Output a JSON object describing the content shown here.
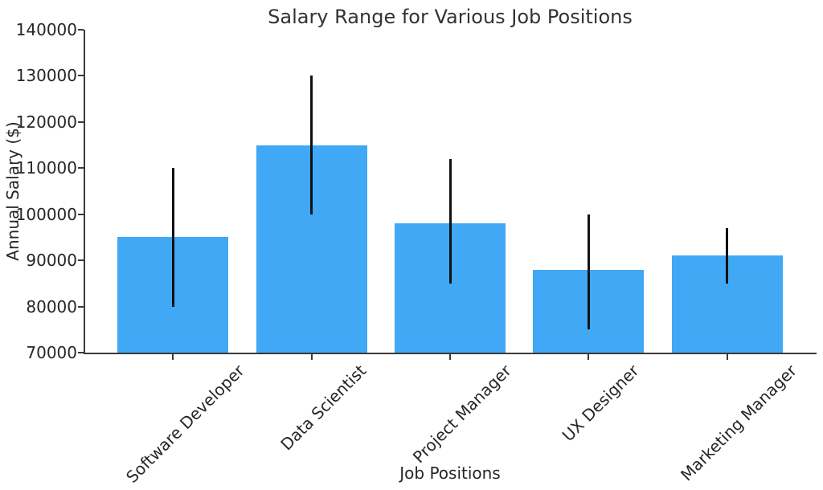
{
  "chart_data": {
    "type": "bar",
    "title": "Salary Range for Various Job Positions",
    "xlabel": "Job Positions",
    "ylabel": "Annual Salary ($)",
    "categories": [
      "Software Developer",
      "Data Scientist",
      "Project Manager",
      "UX Designer",
      "Marketing Manager"
    ],
    "values": [
      95000,
      115000,
      98000,
      88000,
      91000
    ],
    "error_low": [
      80000,
      100000,
      85000,
      75000,
      85000
    ],
    "error_high": [
      110000,
      130000,
      112000,
      100000,
      97000
    ],
    "ylim": [
      70000,
      140000
    ],
    "ytick_step": 10000,
    "ytick_labels": [
      "70000",
      "80000",
      "90000",
      "100000",
      "110000",
      "120000",
      "130000",
      "140000"
    ],
    "bar_color": "#40a8f5",
    "error_bar_color": "#111111",
    "grid": false,
    "legend": false,
    "x_tick_rotation_deg": 45
  }
}
